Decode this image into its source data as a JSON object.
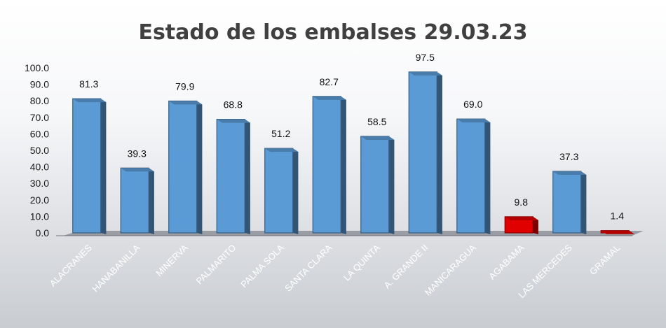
{
  "chart_data": {
    "type": "bar",
    "title": "Estado de los embalses 29.03.23",
    "categories": [
      "ALACRANES",
      "HANABANILLA",
      "MINERVA",
      "PALMARITO",
      "PALMA SOLA",
      "SANTA CLARA",
      "LA QUINTA",
      "A. GRANDE II",
      "MANICARAGUA",
      "AGABAMA",
      "LAS MERCEDES",
      "GRAMAL"
    ],
    "values": [
      81.3,
      39.3,
      79.9,
      68.8,
      51.2,
      82.7,
      58.5,
      97.5,
      69.0,
      9.8,
      37.3,
      1.4
    ],
    "data_labels": [
      "81.3",
      "39.3",
      "79.9",
      "68.8",
      "51.2",
      "82.7",
      "58.5",
      "97.5",
      "69.0",
      "9.8",
      "37.3",
      "1.4"
    ],
    "bar_colors": [
      "#5b9bd5",
      "#5b9bd5",
      "#5b9bd5",
      "#5b9bd5",
      "#5b9bd5",
      "#5b9bd5",
      "#5b9bd5",
      "#5b9bd5",
      "#5b9bd5",
      "#e00000",
      "#5b9bd5",
      "#e00000"
    ],
    "ylim": [
      0,
      100
    ],
    "yticks": [
      "0.0",
      "10.0",
      "20.0",
      "30.0",
      "40.0",
      "50.0",
      "60.0",
      "70.0",
      "80.0",
      "90.0",
      "100.0"
    ],
    "xlabel": "",
    "ylabel": "",
    "legend": "none",
    "grid": false
  }
}
